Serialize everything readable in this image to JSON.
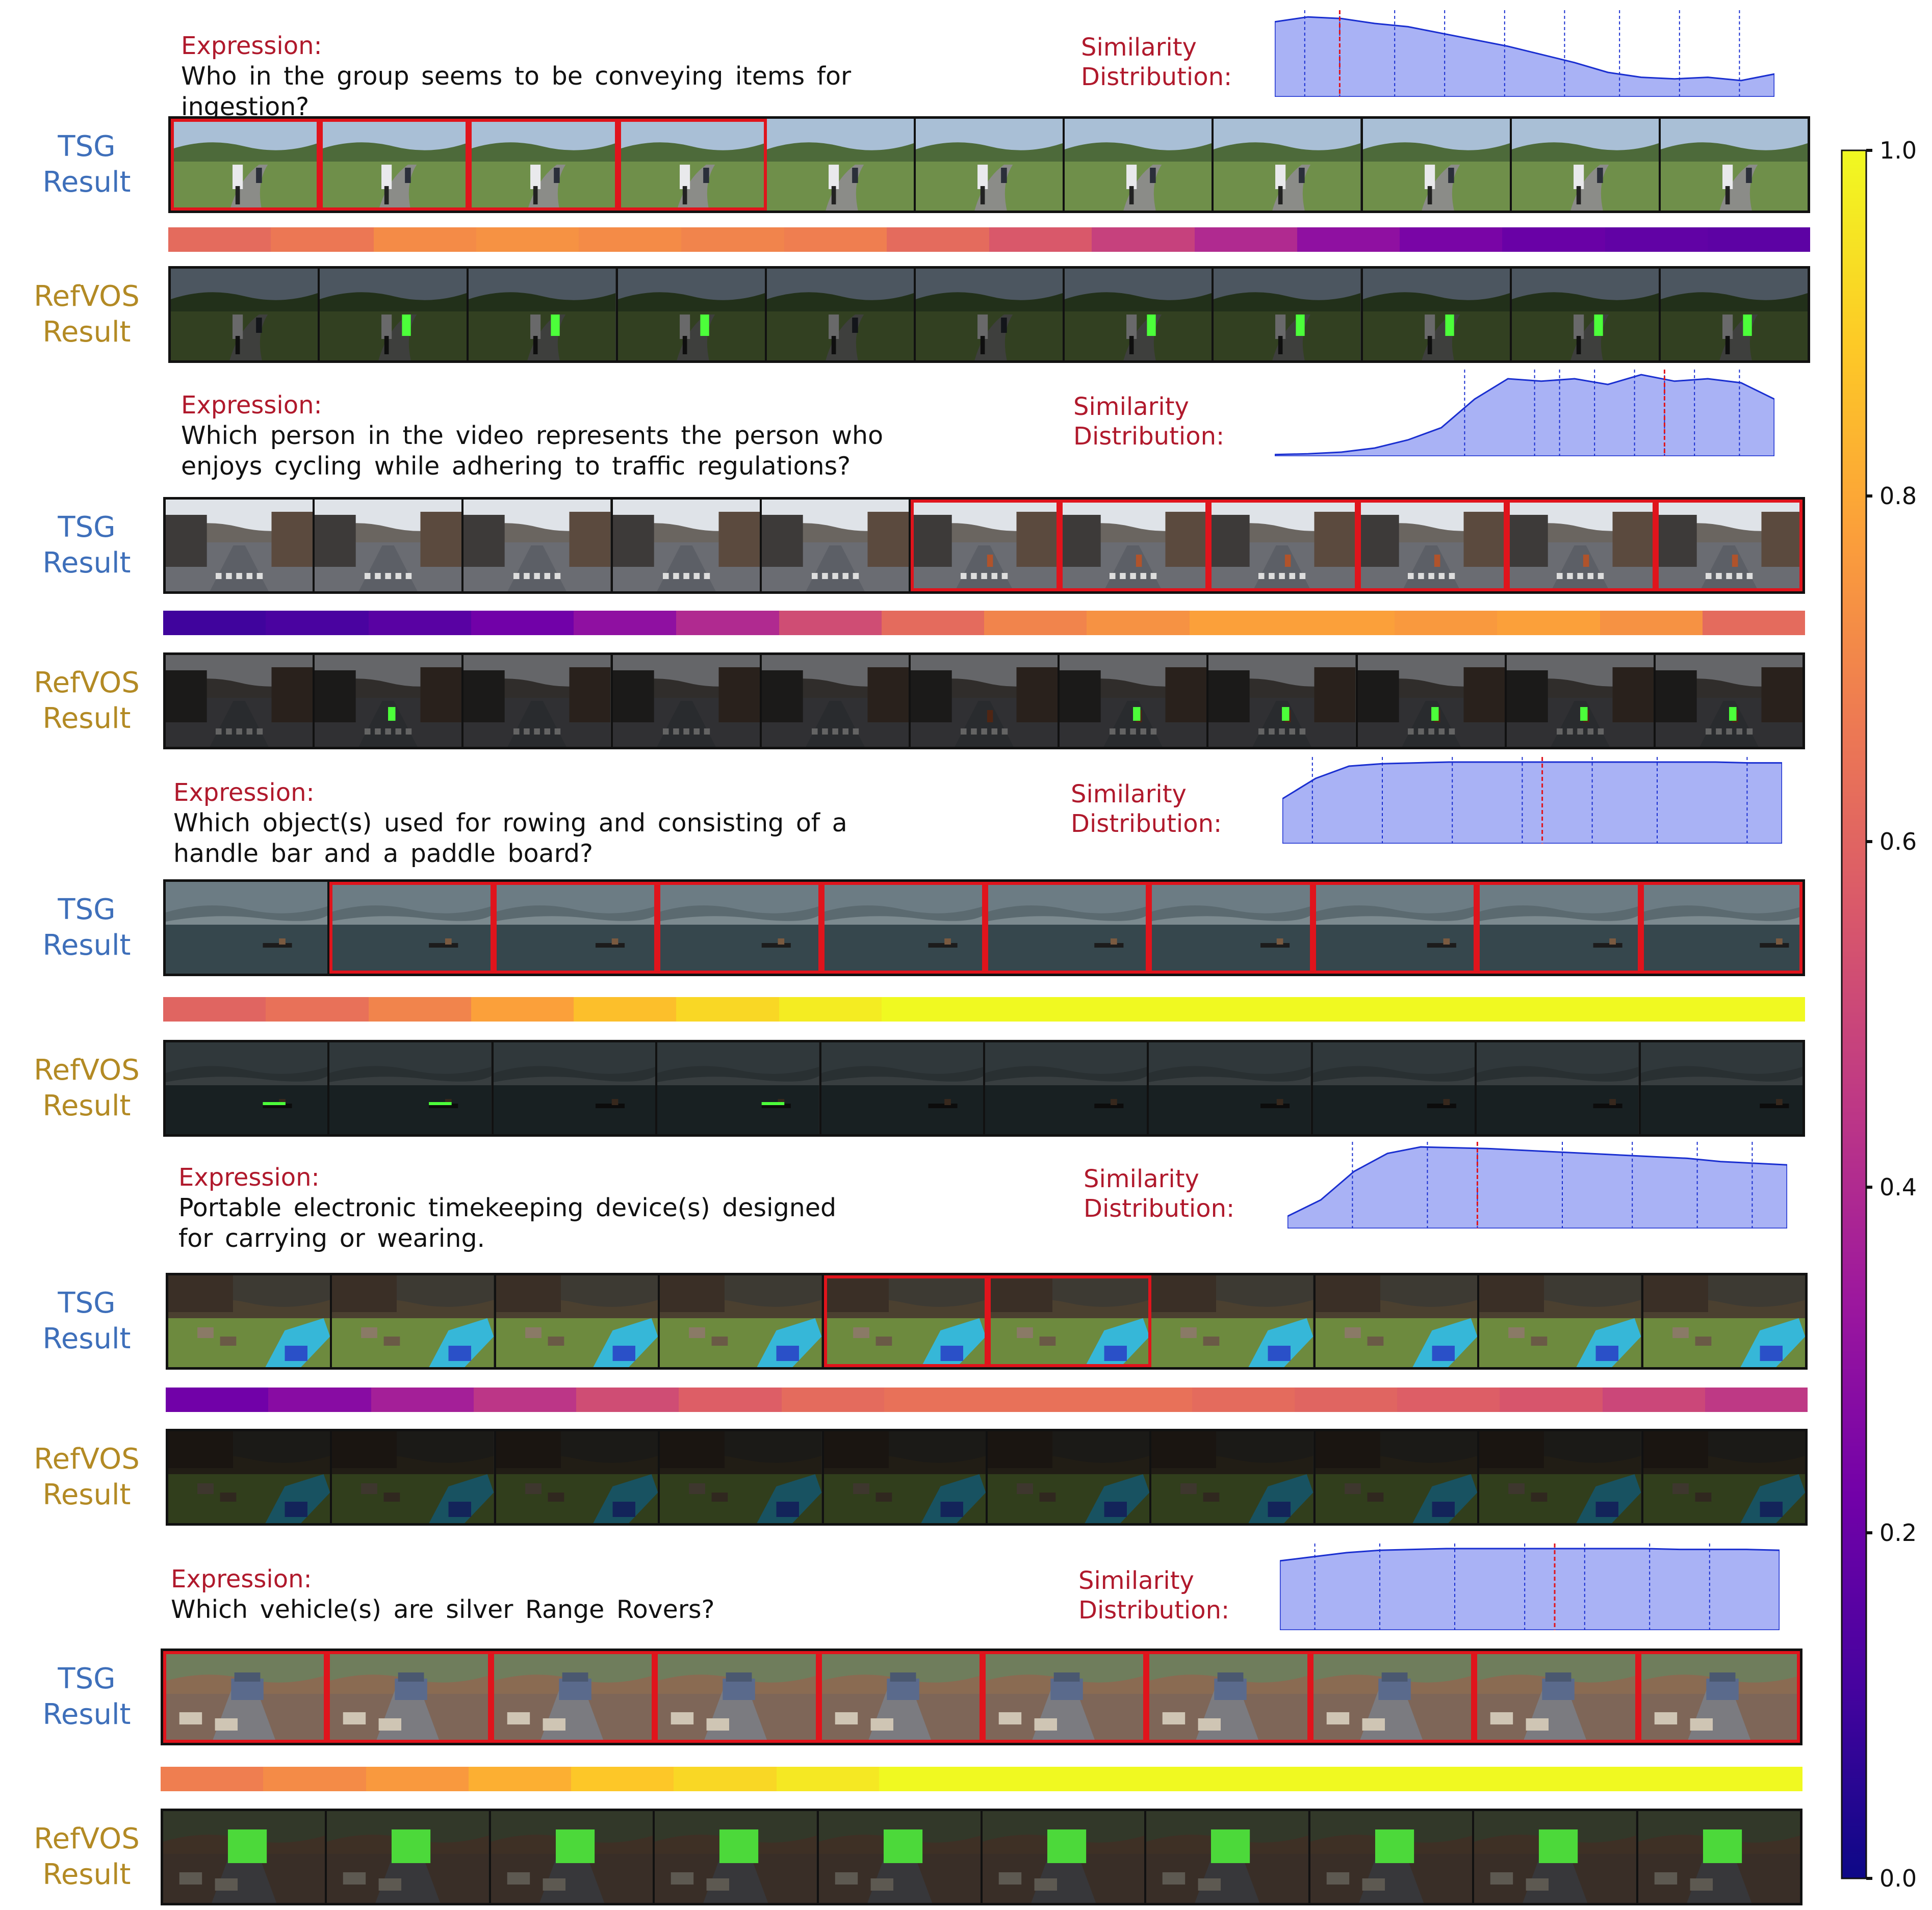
{
  "blocks": [
    {
      "expression_label": "Expression:",
      "expression_text": "Who in the group seems to be conveying items for ingestion?",
      "similarity_label": "Similarity Distribution:",
      "tsg_label": "TSG Result",
      "refvos_label": "RefVOS Result",
      "scene": "road",
      "highlight": [
        1,
        1,
        1,
        1,
        0,
        0,
        0,
        0,
        0,
        0,
        0
      ],
      "refvos_masks": [
        0,
        1,
        1,
        1,
        0,
        0,
        1,
        1,
        1,
        1,
        1
      ],
      "heat": [
        0.62,
        0.66,
        0.72,
        0.74,
        0.72,
        0.7,
        0.68,
        0.62,
        0.56,
        0.48,
        0.4,
        0.3,
        0.24,
        0.2,
        0.18,
        0.17
      ],
      "curve": [
        0.92,
        0.98,
        0.96,
        0.9,
        0.86,
        0.78,
        0.7,
        0.62,
        0.52,
        0.42,
        0.3,
        0.24,
        0.22,
        0.24,
        0.2,
        0.28
      ],
      "vlines": [
        0.06,
        0.13,
        0.24,
        0.34,
        0.46,
        0.58,
        0.69,
        0.81,
        0.93
      ],
      "redline": 0.13
    },
    {
      "expression_label": "Expression:",
      "expression_text": "Which person in the video represents the person who enjoys cycling while adhering to traffic regulations?",
      "similarity_label": "Similarity Distribution:",
      "tsg_label": "TSG Result",
      "refvos_label": "RefVOS Result",
      "scene": "street",
      "highlight": [
        0,
        0,
        0,
        0,
        0,
        1,
        1,
        1,
        1,
        1,
        1
      ],
      "refvos_masks": [
        0,
        1,
        0,
        0,
        0,
        0,
        1,
        1,
        1,
        1,
        1
      ],
      "heat": [
        0.1,
        0.12,
        0.16,
        0.22,
        0.3,
        0.4,
        0.52,
        0.62,
        0.7,
        0.74,
        0.78,
        0.78,
        0.76,
        0.78,
        0.74,
        0.62
      ],
      "curve": [
        0.02,
        0.03,
        0.05,
        0.1,
        0.2,
        0.35,
        0.7,
        0.95,
        0.92,
        0.95,
        0.88,
        1.0,
        0.92,
        0.95,
        0.9,
        0.7
      ],
      "vlines": [
        0.38,
        0.52,
        0.57,
        0.64,
        0.72,
        0.78,
        0.84,
        0.93
      ],
      "redline": 0.78
    },
    {
      "expression_label": "Expression:",
      "expression_text": "Which object(s) used for rowing and consisting of a handle bar and a paddle board?",
      "similarity_label": "Similarity Distribution:",
      "tsg_label": "TSG Result",
      "refvos_label": "RefVOS Result",
      "scene": "lake",
      "highlight": [
        0,
        1,
        1,
        1,
        1,
        1,
        1,
        1,
        1,
        1
      ],
      "refvos_masks": [
        1,
        1,
        0,
        1,
        0,
        0,
        0,
        0,
        0,
        0
      ],
      "heat": [
        0.6,
        0.64,
        0.7,
        0.78,
        0.86,
        0.92,
        0.97,
        1.0,
        1.0,
        1.0,
        1.0,
        1.0,
        1.0,
        1.0,
        1.0,
        1.0
      ],
      "curve": [
        0.55,
        0.8,
        0.95,
        0.98,
        0.99,
        1.0,
        1.0,
        1.0,
        1.0,
        1.0,
        1.0,
        1.0,
        1.0,
        1.0,
        0.99,
        0.99
      ],
      "vlines": [
        0.06,
        0.2,
        0.34,
        0.48,
        0.62,
        0.75,
        0.93
      ],
      "redline": 0.52
    },
    {
      "expression_label": "Expression:",
      "expression_text": "Portable electronic timekeeping device(s) designed for carrying or wearing.",
      "similarity_label": "Similarity Distribution:",
      "tsg_label": "TSG Result",
      "refvos_label": "RefVOS Result",
      "scene": "dogs",
      "highlight": [
        0,
        0,
        0,
        0,
        1,
        1,
        0,
        0,
        0,
        0
      ],
      "refvos_masks": [
        0,
        0,
        0,
        0,
        0,
        0,
        0,
        0,
        0,
        0
      ],
      "heat": [
        0.22,
        0.28,
        0.36,
        0.44,
        0.52,
        0.58,
        0.62,
        0.64,
        0.64,
        0.64,
        0.62,
        0.6,
        0.58,
        0.55,
        0.5,
        0.45
      ],
      "curve": [
        0.15,
        0.35,
        0.7,
        0.92,
        1.0,
        0.99,
        0.98,
        0.96,
        0.94,
        0.92,
        0.9,
        0.88,
        0.86,
        0.82,
        0.8,
        0.78
      ],
      "vlines": [
        0.13,
        0.28,
        0.38,
        0.55,
        0.69,
        0.82,
        0.93
      ],
      "redline": 0.38
    },
    {
      "expression_label": "Expression:",
      "expression_text": "Which vehicle(s) are silver Range Rovers?",
      "similarity_label": "Similarity Distribution:",
      "tsg_label": "TSG Result",
      "refvos_label": "RefVOS Result",
      "scene": "sheep",
      "highlight": [
        1,
        1,
        1,
        1,
        1,
        1,
        1,
        1,
        1,
        1
      ],
      "refvos_masks": [
        1,
        1,
        1,
        1,
        1,
        1,
        1,
        1,
        1,
        1
      ],
      "heat": [
        0.68,
        0.72,
        0.76,
        0.82,
        0.88,
        0.92,
        0.96,
        1.0,
        1.0,
        1.0,
        1.0,
        1.0,
        1.0,
        1.0,
        1.0,
        1.0
      ],
      "curve": [
        0.85,
        0.9,
        0.95,
        0.98,
        0.99,
        1.0,
        1.0,
        1.0,
        1.0,
        1.0,
        1.0,
        1.0,
        0.99,
        0.99,
        0.99,
        0.98
      ],
      "vlines": [
        0.07,
        0.2,
        0.35,
        0.49,
        0.61,
        0.74,
        0.86
      ],
      "redline": 0.55
    }
  ],
  "colorbar": {
    "ticks": [
      "1.0",
      "0.8",
      "0.6",
      "0.4",
      "0.2",
      "0.0"
    ],
    "colormap": [
      "#0d0887",
      "#46039f",
      "#7201a8",
      "#9c179e",
      "#bd3786",
      "#d8576b",
      "#ed7953",
      "#fb9f3a",
      "#fdca26",
      "#f0f921"
    ]
  }
}
